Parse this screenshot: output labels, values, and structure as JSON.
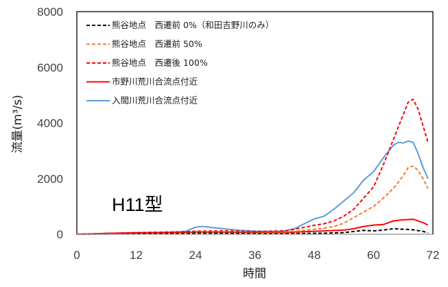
{
  "chart_data": {
    "type": "line",
    "title": "",
    "xlabel": "時間",
    "ylabel": "流量(m³/s)",
    "xlim": [
      0,
      72
    ],
    "ylim": [
      0,
      8000
    ],
    "x_ticks": [
      0,
      12,
      24,
      36,
      48,
      60,
      72
    ],
    "y_ticks": [
      0,
      2000,
      4000,
      6000,
      8000
    ],
    "grid": false,
    "legend_position": "top-left",
    "annotation": "H11型",
    "series": [
      {
        "name": "熊谷地点　西遷前 0%（和田吉野川のみ）",
        "color": "#000000",
        "style": "dashed",
        "x": [
          0,
          6,
          12,
          18,
          22,
          24,
          30,
          36,
          42,
          46,
          50,
          54,
          56,
          58,
          60,
          62,
          64,
          66,
          68,
          70,
          71
        ],
        "y": [
          0,
          10,
          20,
          25,
          30,
          40,
          40,
          30,
          25,
          30,
          40,
          60,
          100,
          140,
          120,
          150,
          200,
          180,
          160,
          100,
          60
        ]
      },
      {
        "name": "熊谷地点　西遷前 50%",
        "color": "#ED7D31",
        "style": "dashed",
        "x": [
          0,
          6,
          12,
          18,
          22,
          24,
          30,
          36,
          42,
          45,
          48,
          50,
          52,
          54,
          56,
          58,
          60,
          62,
          64,
          66,
          67,
          68,
          69,
          70,
          71
        ],
        "y": [
          0,
          20,
          40,
          50,
          60,
          80,
          80,
          70,
          80,
          120,
          180,
          220,
          280,
          400,
          600,
          800,
          1000,
          1300,
          1650,
          2100,
          2400,
          2450,
          2300,
          2000,
          1650
        ]
      },
      {
        "name": "熊谷地点　西遷後 100%",
        "color": "#FF0000",
        "style": "dashed",
        "x": [
          0,
          6,
          12,
          18,
          22,
          24,
          30,
          36,
          42,
          44,
          46,
          48,
          50,
          52,
          54,
          56,
          58,
          60,
          62,
          64,
          66,
          67,
          68,
          69,
          70,
          71
        ],
        "y": [
          0,
          30,
          60,
          80,
          90,
          110,
          120,
          100,
          120,
          180,
          250,
          320,
          380,
          480,
          650,
          900,
          1300,
          1700,
          2500,
          3400,
          4300,
          4750,
          4850,
          4500,
          3900,
          3300
        ]
      },
      {
        "name": "市野川荒川合流点付近",
        "color": "#FF0000",
        "style": "solid",
        "x": [
          0,
          6,
          12,
          18,
          22,
          24,
          30,
          36,
          42,
          46,
          50,
          54,
          56,
          58,
          60,
          62,
          64,
          66,
          68,
          70,
          71
        ],
        "y": [
          0,
          30,
          50,
          60,
          70,
          80,
          80,
          70,
          70,
          90,
          120,
          150,
          200,
          280,
          330,
          350,
          480,
          520,
          540,
          420,
          330
        ]
      },
      {
        "name": "入間川荒川合流点付近",
        "color": "#5B9BD5",
        "style": "solid",
        "x": [
          0,
          6,
          12,
          18,
          20,
          22,
          23,
          24,
          25,
          26,
          28,
          30,
          33,
          36,
          40,
          42,
          44,
          46,
          48,
          50,
          52,
          54,
          56,
          58,
          60,
          62,
          64,
          65,
          66,
          67,
          68,
          69,
          70,
          71
        ],
        "y": [
          0,
          30,
          60,
          70,
          80,
          100,
          180,
          250,
          280,
          270,
          230,
          190,
          140,
          110,
          100,
          120,
          200,
          380,
          550,
          650,
          900,
          1200,
          1500,
          1950,
          2250,
          2750,
          3200,
          3300,
          3280,
          3350,
          3300,
          2900,
          2400,
          2000
        ]
      }
    ]
  }
}
